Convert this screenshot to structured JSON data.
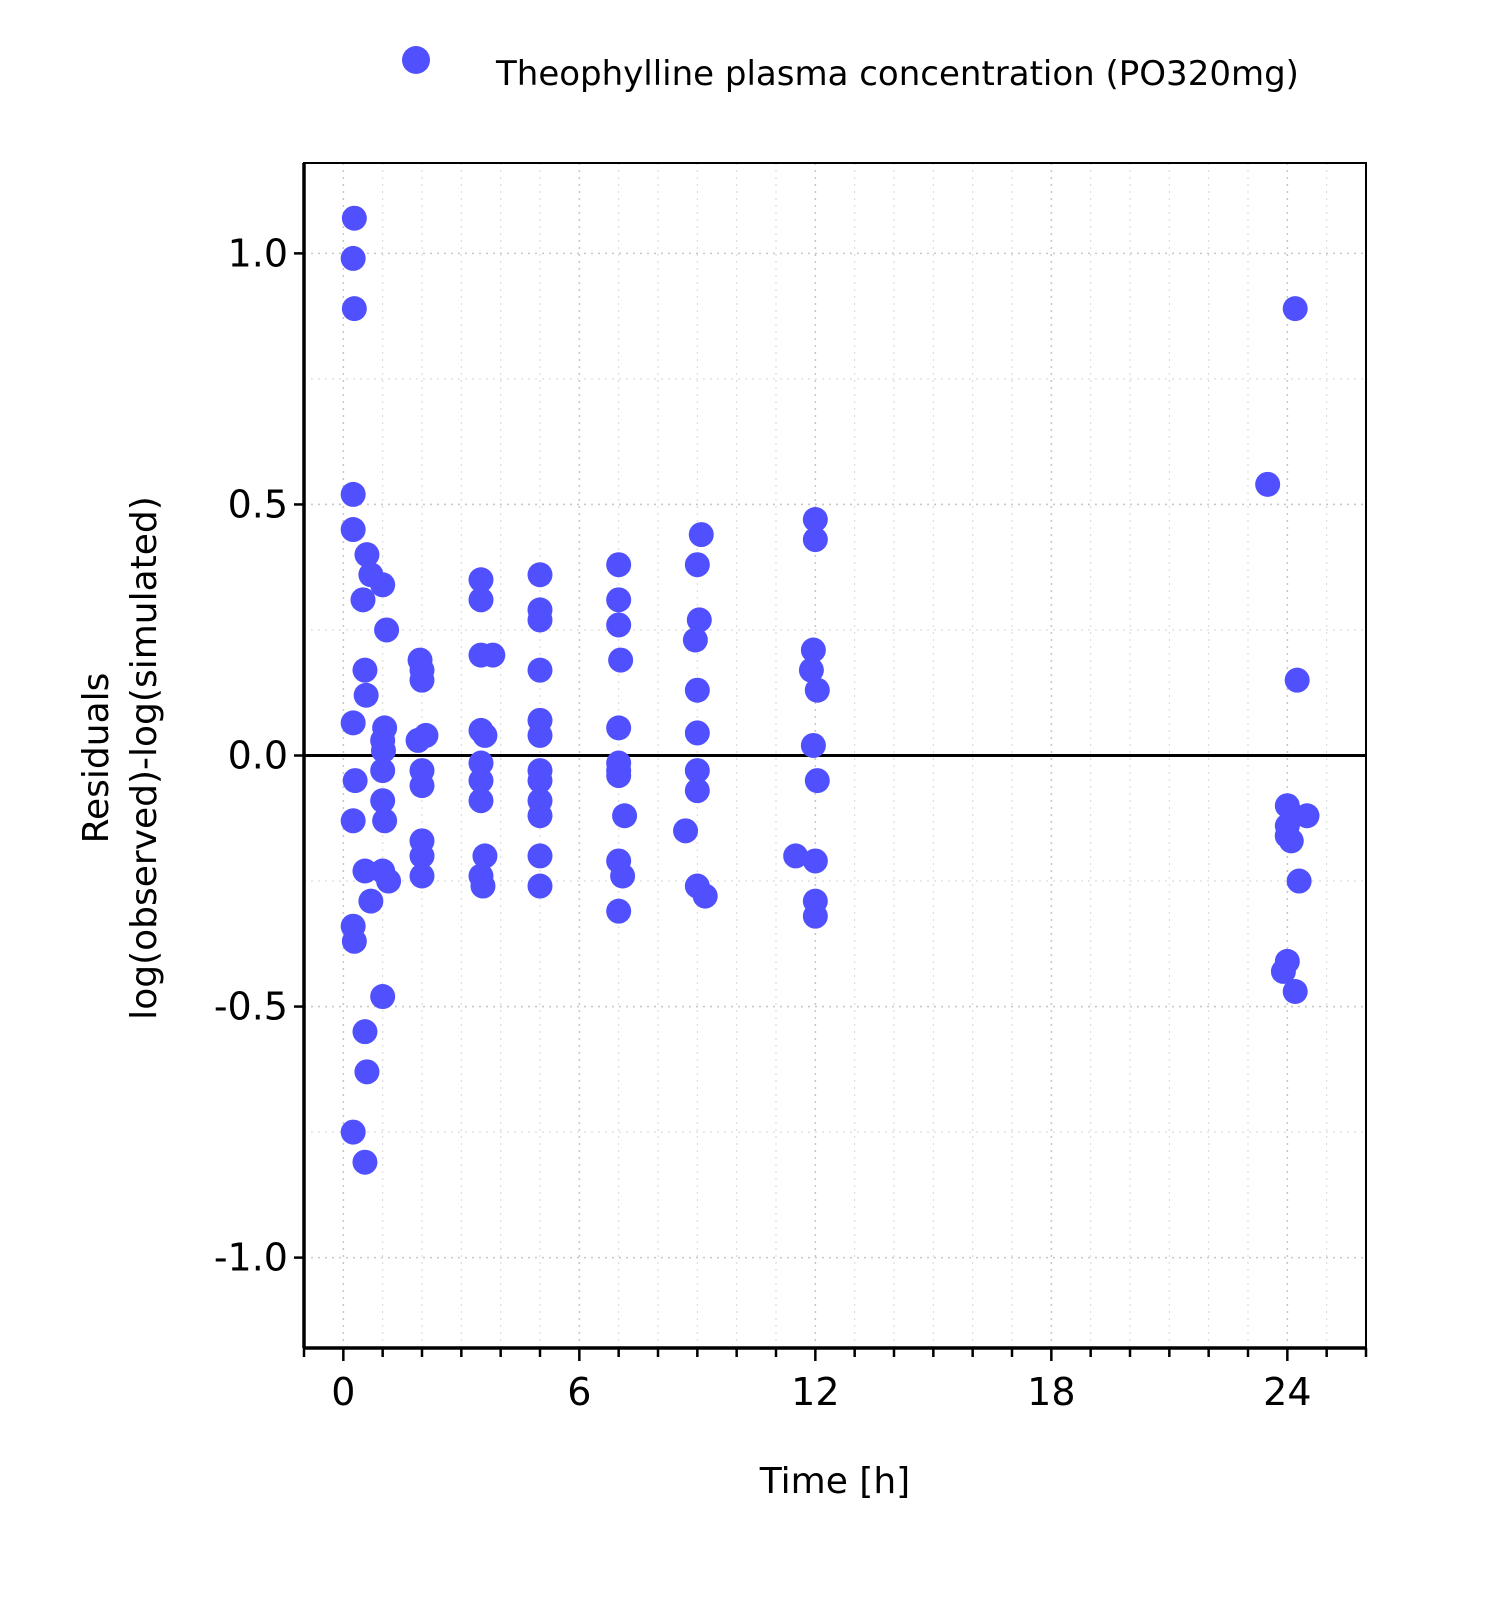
{
  "chart_data": {
    "type": "scatter",
    "title": "",
    "xlabel": "Time [h]",
    "ylabel_lines": [
      "Residuals",
      "log(observed)-log(simulated)"
    ],
    "xlim": [
      -1,
      26
    ],
    "ylim": [
      -1.18,
      1.18
    ],
    "x_ticks": [
      0,
      6,
      12,
      18,
      24
    ],
    "x_tick_labels": [
      "0",
      "6",
      "12",
      "18",
      "24"
    ],
    "x_minor_step": 1,
    "y_ticks": [
      -1.0,
      -0.5,
      0.0,
      0.5,
      1.0
    ],
    "y_tick_labels": [
      "-1.0",
      "-0.5",
      "0.0",
      "0.5",
      "1.0"
    ],
    "y_minor_step": 0.25,
    "grid": true,
    "reference_line_y": 0,
    "legend_position": "top",
    "colors": {
      "marker": "#5050ff",
      "axis": "#000000"
    },
    "series": [
      {
        "name": "Theophylline plasma concentration (PO320mg)",
        "x": [
          0.28,
          0.25,
          0.28,
          0.25,
          0.25,
          0.6,
          0.7,
          0.5,
          0.55,
          0.58,
          0.25,
          0.3,
          0.25,
          0.55,
          0.7,
          0.25,
          0.28,
          0.55,
          0.6,
          0.25,
          0.55,
          1.0,
          1.1,
          1.05,
          1.0,
          1.02,
          1.0,
          1.0,
          1.05,
          1.0,
          1.15,
          1.0,
          1.95,
          2.0,
          2.0,
          1.9,
          2.1,
          2.0,
          2.0,
          2.0,
          2.0,
          2.0,
          3.5,
          3.5,
          3.5,
          3.8,
          3.5,
          3.6,
          3.5,
          3.5,
          3.5,
          3.6,
          3.5,
          3.55,
          5.0,
          5.0,
          5.0,
          5.0,
          5.0,
          5.0,
          5.0,
          5.0,
          5.0,
          5.0,
          5.0,
          5.0,
          7.0,
          7.0,
          7.0,
          7.05,
          7.0,
          7.0,
          7.0,
          7.0,
          7.15,
          7.0,
          7.1,
          7.0,
          9.1,
          9.0,
          9.05,
          8.95,
          9.0,
          9.0,
          9.0,
          9.0,
          8.7,
          9.0,
          9.2,
          12.0,
          12.0,
          11.95,
          11.9,
          12.05,
          11.95,
          12.05,
          11.5,
          12.0,
          12.0,
          12.0,
          23.5,
          24.2,
          24.25,
          24.0,
          24.5,
          24.0,
          24.0,
          24.1,
          24.3,
          24.0,
          23.9,
          24.2,
          24.0
        ],
        "y": [
          1.07,
          0.99,
          0.89,
          0.52,
          0.45,
          0.4,
          0.36,
          0.31,
          0.17,
          0.12,
          0.065,
          -0.05,
          -0.13,
          -0.23,
          -0.29,
          -0.34,
          -0.37,
          -0.55,
          -0.63,
          -0.75,
          -0.81,
          0.34,
          0.25,
          0.055,
          0.03,
          0.01,
          -0.03,
          -0.09,
          -0.13,
          -0.23,
          -0.25,
          -0.48,
          0.19,
          0.17,
          0.15,
          0.03,
          0.04,
          -0.03,
          -0.06,
          -0.17,
          -0.2,
          -0.24,
          0.35,
          0.31,
          0.2,
          0.2,
          0.05,
          0.04,
          -0.015,
          -0.05,
          -0.09,
          -0.2,
          -0.24,
          -0.26,
          0.36,
          0.29,
          0.27,
          0.17,
          0.07,
          0.04,
          -0.03,
          -0.05,
          -0.09,
          -0.12,
          -0.2,
          -0.26,
          0.38,
          0.31,
          0.26,
          0.19,
          0.055,
          -0.015,
          -0.03,
          -0.04,
          -0.12,
          -0.21,
          -0.24,
          -0.31,
          0.44,
          0.38,
          0.27,
          0.23,
          0.13,
          0.045,
          -0.03,
          -0.07,
          -0.15,
          -0.26,
          -0.28,
          0.47,
          0.43,
          0.21,
          0.17,
          0.13,
          0.02,
          -0.05,
          -0.2,
          -0.21,
          -0.29,
          -0.32,
          0.54,
          0.89,
          0.15,
          -0.1,
          -0.12,
          -0.14,
          -0.16,
          -0.17,
          -0.25,
          -0.41,
          -0.43,
          -0.47,
          -0.16
        ]
      }
    ]
  }
}
